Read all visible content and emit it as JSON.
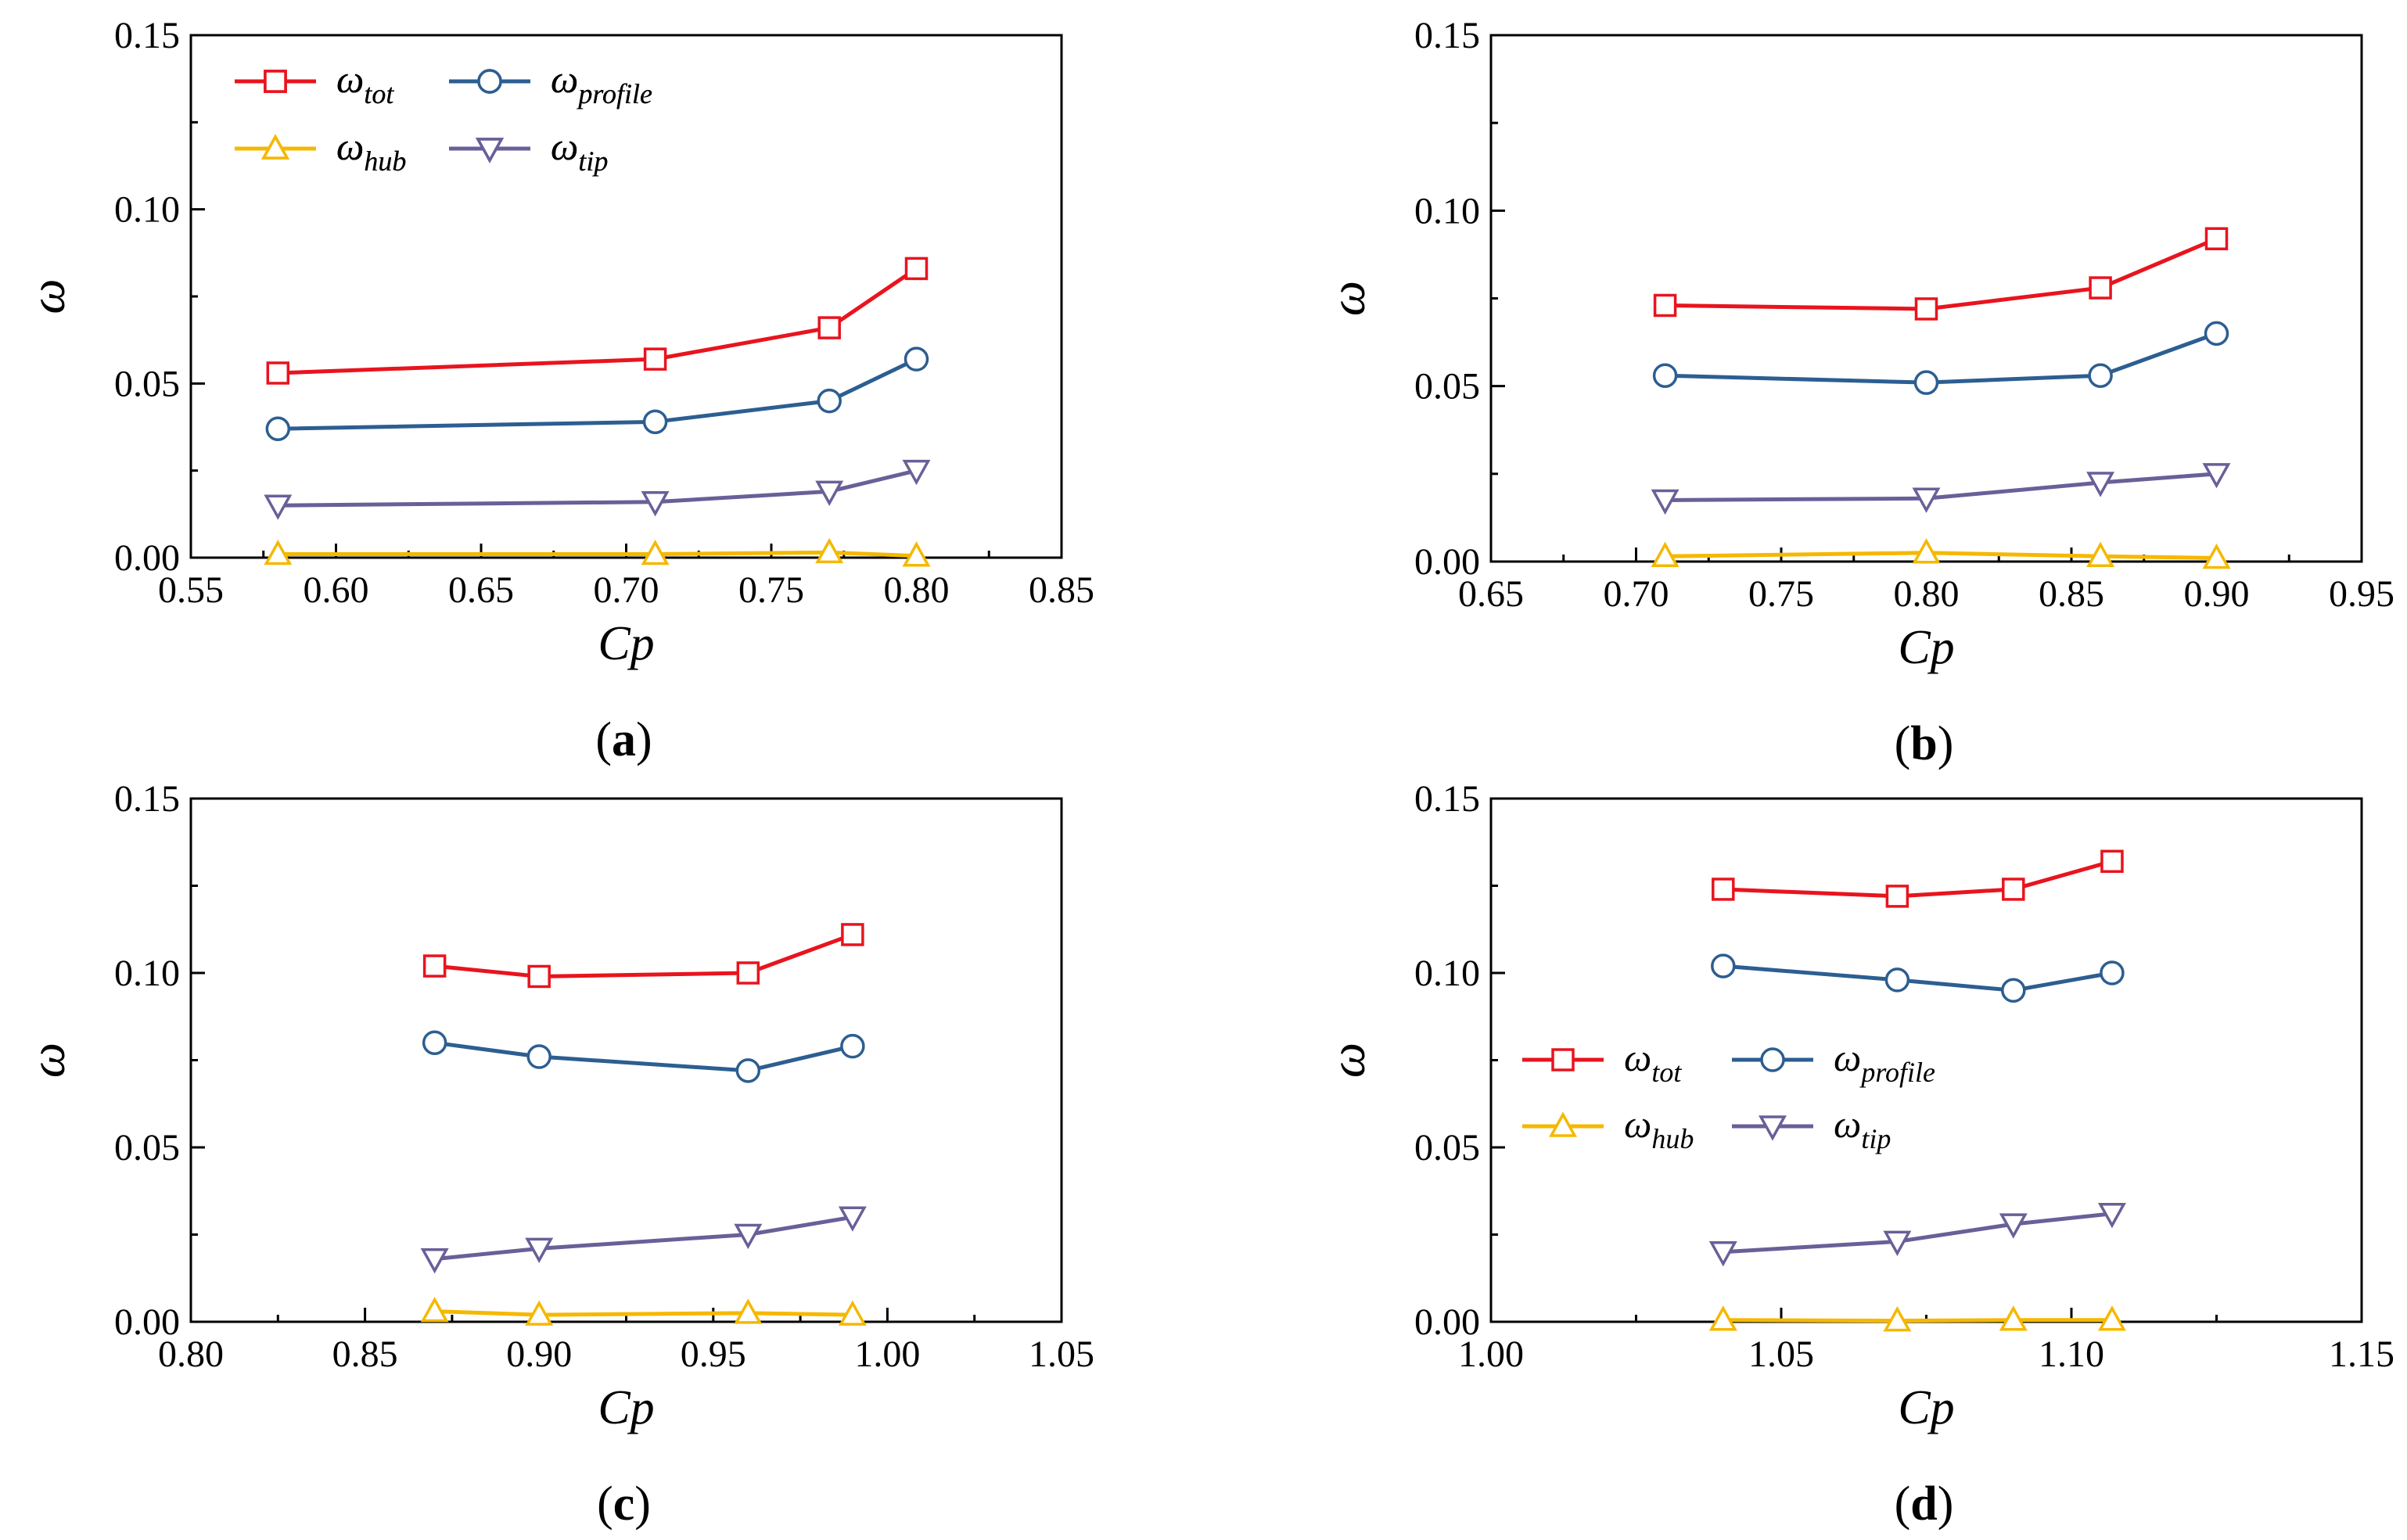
{
  "colors": {
    "tot": "#e8141e",
    "profile": "#2c5e91",
    "hub": "#f5b800",
    "tip": "#6a5f98"
  },
  "legend_labels": {
    "tot": {
      "base": "ω",
      "sub": "tot"
    },
    "profile": {
      "base": "ω",
      "sub": "profile"
    },
    "hub": {
      "base": "ω",
      "sub": "hub"
    },
    "tip": {
      "base": "ω",
      "sub": "tip"
    }
  },
  "chart_data": [
    {
      "type": "line",
      "panel_label": "(a)",
      "xlabel": "Cp",
      "ylabel": "ω",
      "xlim": [
        0.55,
        0.85
      ],
      "ylim": [
        0,
        0.15
      ],
      "xticks": [
        "0.55",
        "0.60",
        "0.65",
        "0.70",
        "0.75",
        "0.80",
        "0.85"
      ],
      "yticks": [
        "0.00",
        "0.05",
        "0.10",
        "0.15"
      ],
      "legend_position": "top-left",
      "x": [
        0.58,
        0.71,
        0.77,
        0.8
      ],
      "series": [
        {
          "key": "tot",
          "marker": "square",
          "values": [
            0.053,
            0.057,
            0.066,
            0.083
          ]
        },
        {
          "key": "profile",
          "marker": "circle",
          "values": [
            0.037,
            0.039,
            0.045,
            0.057
          ]
        },
        {
          "key": "hub",
          "marker": "triangle-up",
          "values": [
            0.001,
            0.001,
            0.0015,
            0.0005
          ]
        },
        {
          "key": "tip",
          "marker": "triangle-down",
          "values": [
            0.015,
            0.016,
            0.019,
            0.025
          ]
        }
      ]
    },
    {
      "type": "line",
      "panel_label": "(b)",
      "xlabel": "Cp",
      "ylabel": "ω",
      "xlim": [
        0.65,
        0.95
      ],
      "ylim": [
        0,
        0.15
      ],
      "xticks": [
        "0.65",
        "0.70",
        "0.75",
        "0.80",
        "0.85",
        "0.90",
        "0.95"
      ],
      "yticks": [
        "0.00",
        "0.05",
        "0.10",
        "0.15"
      ],
      "legend_position": "top-left",
      "x": [
        0.71,
        0.8,
        0.86,
        0.9
      ],
      "series": [
        {
          "key": "tot",
          "marker": "square",
          "values": [
            0.073,
            0.072,
            0.078,
            0.092
          ]
        },
        {
          "key": "profile",
          "marker": "circle",
          "values": [
            0.053,
            0.051,
            0.053,
            0.065
          ]
        },
        {
          "key": "hub",
          "marker": "triangle-up",
          "values": [
            0.0015,
            0.0025,
            0.0015,
            0.001
          ]
        },
        {
          "key": "tip",
          "marker": "triangle-down",
          "values": [
            0.0175,
            0.018,
            0.0225,
            0.025
          ]
        }
      ]
    },
    {
      "type": "line",
      "panel_label": "(c)",
      "xlabel": "Cp",
      "ylabel": "ω",
      "xlim": [
        0.8,
        1.05
      ],
      "ylim": [
        0,
        0.15
      ],
      "xticks": [
        "0.80",
        "0.85",
        "0.90",
        "0.95",
        "1.00",
        "1.05"
      ],
      "yticks": [
        "0.00",
        "0.05",
        "0.10",
        "0.15"
      ],
      "legend_position": "top-left",
      "x": [
        0.87,
        0.9,
        0.96,
        0.99
      ],
      "series": [
        {
          "key": "tot",
          "marker": "square",
          "values": [
            0.102,
            0.099,
            0.1,
            0.111
          ]
        },
        {
          "key": "profile",
          "marker": "circle",
          "values": [
            0.08,
            0.076,
            0.072,
            0.079
          ]
        },
        {
          "key": "hub",
          "marker": "triangle-up",
          "values": [
            0.003,
            0.002,
            0.0025,
            0.002
          ]
        },
        {
          "key": "tip",
          "marker": "triangle-down",
          "values": [
            0.018,
            0.021,
            0.025,
            0.03
          ]
        }
      ]
    },
    {
      "type": "line",
      "panel_label": "(d)",
      "xlabel": "Cp",
      "ylabel": "ω",
      "xlim": [
        1.0,
        1.15
      ],
      "ylim": [
        0,
        0.15
      ],
      "xticks": [
        "1.00",
        "1.05",
        "1.10",
        "1.15"
      ],
      "yticks": [
        "0.00",
        "0.05",
        "0.10",
        "0.15"
      ],
      "legend_position": "center-left",
      "x": [
        1.04,
        1.07,
        1.09,
        1.107
      ],
      "series": [
        {
          "key": "tot",
          "marker": "square",
          "values": [
            0.124,
            0.122,
            0.124,
            0.132
          ]
        },
        {
          "key": "profile",
          "marker": "circle",
          "values": [
            0.102,
            0.098,
            0.095,
            0.1
          ]
        },
        {
          "key": "hub",
          "marker": "triangle-up",
          "values": [
            0.0005,
            0.0003,
            0.0005,
            0.0005
          ]
        },
        {
          "key": "tip",
          "marker": "triangle-down",
          "values": [
            0.02,
            0.023,
            0.028,
            0.031
          ]
        }
      ]
    }
  ]
}
